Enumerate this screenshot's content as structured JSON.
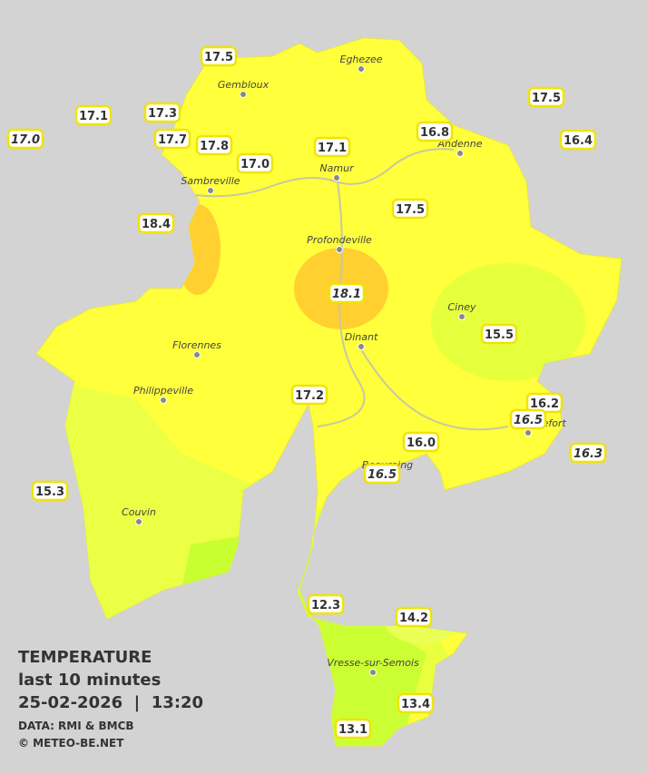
{
  "legend": {
    "title": "TEMPERATURE",
    "subtitle": "last 10 minutes",
    "datetime": "25-02-2026  |  13:20",
    "source": "DATA: RMI & BMCB",
    "copyright": "© METEO-BE.NET"
  },
  "cities": [
    "Eghezee",
    "Gembloux",
    "Andenne",
    "Namur",
    "Sambreville",
    "Profondeville",
    "Ciney",
    "Dinant",
    "Florennes",
    "Philippeville",
    "Rochefort",
    "Beauraing",
    "Couvin",
    "Vresse-sur-Semois"
  ],
  "stations": [
    {
      "value": "17.5",
      "italic": false
    },
    {
      "value": "17.1",
      "italic": false
    },
    {
      "value": "17.0",
      "italic": true
    },
    {
      "value": "17.3",
      "italic": false
    },
    {
      "value": "17.7",
      "italic": false
    },
    {
      "value": "17.8",
      "italic": false
    },
    {
      "value": "17.0",
      "italic": false
    },
    {
      "value": "17.1",
      "italic": false
    },
    {
      "value": "16.8",
      "italic": false
    },
    {
      "value": "17.5",
      "italic": false
    },
    {
      "value": "16.4",
      "italic": false
    },
    {
      "value": "17.5",
      "italic": false
    },
    {
      "value": "18.4",
      "italic": false
    },
    {
      "value": "18.1",
      "italic": true
    },
    {
      "value": "15.5",
      "italic": false
    },
    {
      "value": "17.2",
      "italic": false
    },
    {
      "value": "16.2",
      "italic": false
    },
    {
      "value": "16.5",
      "italic": true
    },
    {
      "value": "16.0",
      "italic": false
    },
    {
      "value": "16.3",
      "italic": true
    },
    {
      "value": "16.5",
      "italic": true
    },
    {
      "value": "15.3",
      "italic": false
    },
    {
      "value": "12.3",
      "italic": false
    },
    {
      "value": "14.2",
      "italic": false
    },
    {
      "value": "13.4",
      "italic": false
    },
    {
      "value": "13.1",
      "italic": false
    }
  ]
}
